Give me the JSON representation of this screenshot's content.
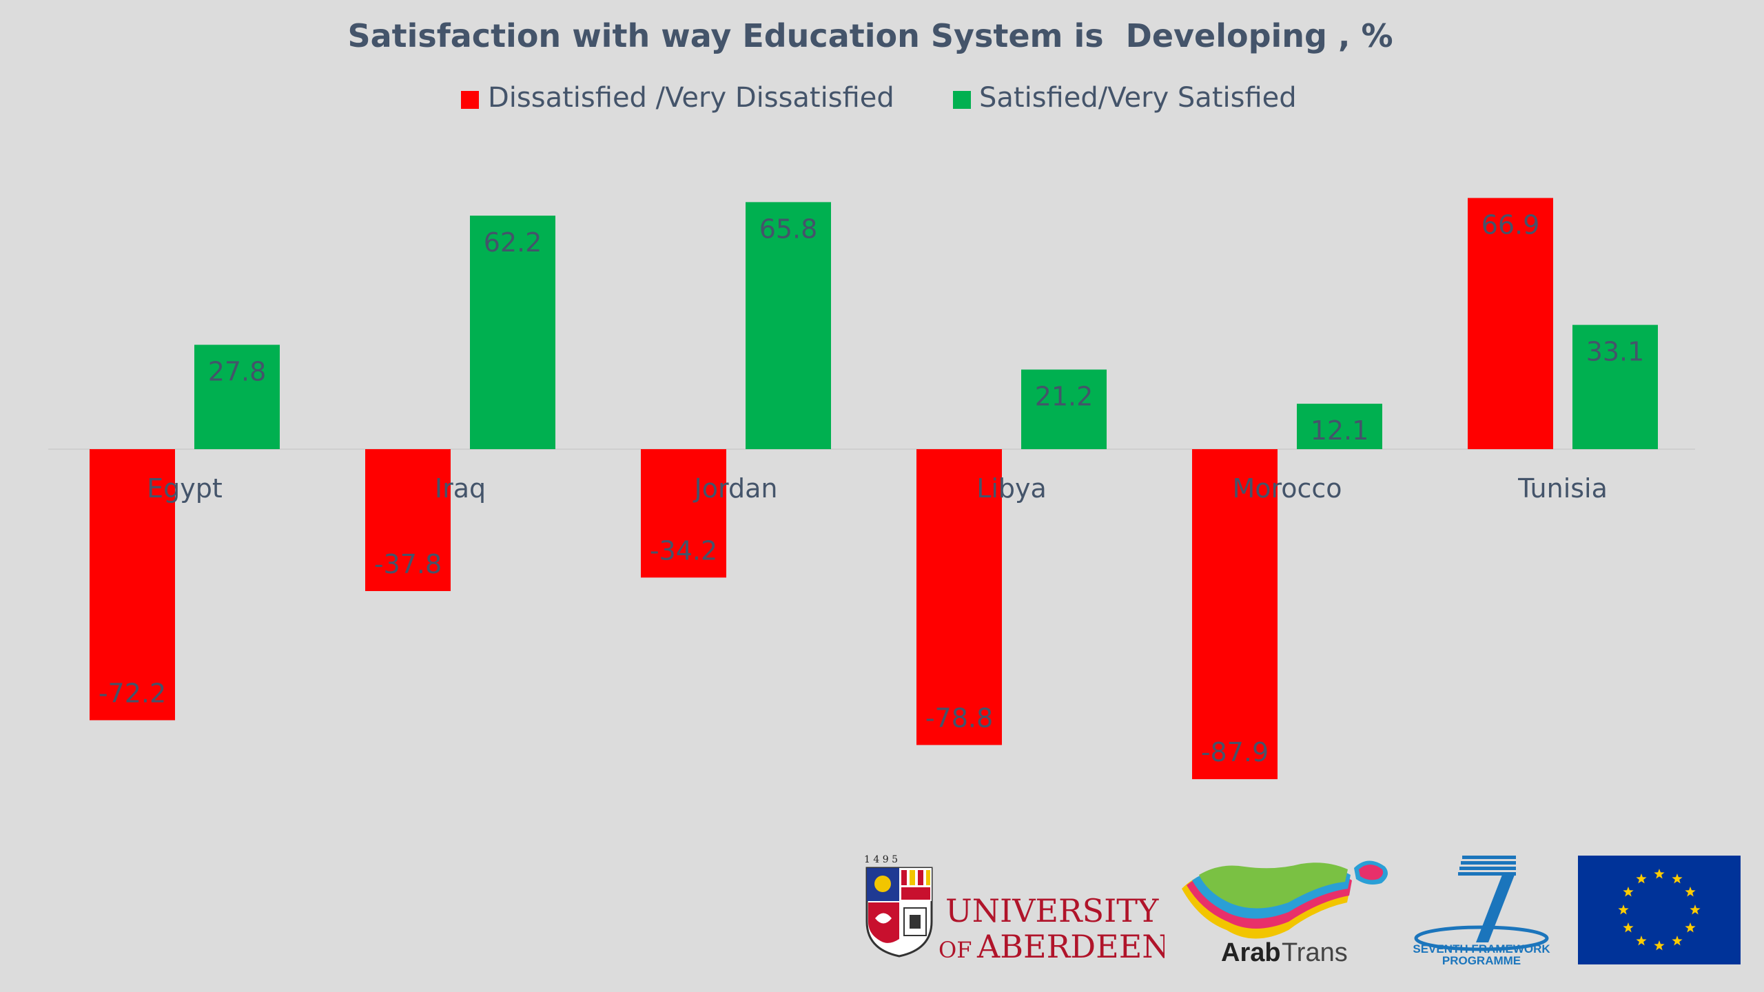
{
  "chart_data": {
    "type": "bar",
    "title": "Satisfaction with way Education System is  Developing , %",
    "categories": [
      "Egypt",
      "Iraq",
      "Jordan",
      "Libya",
      "Morocco",
      "Tunisia"
    ],
    "series": [
      {
        "name": "Dissatisfied /Very Dissatisfied",
        "color": "#ff0000",
        "values": [
          -72.2,
          -37.8,
          -34.2,
          -78.8,
          -87.9,
          66.9
        ],
        "labels": [
          "-72.2",
          "-37.8",
          "-34.2",
          "-78.8",
          "-87.9",
          "66.9"
        ]
      },
      {
        "name": "Satisfied/Very Satisfied",
        "color": "#00b050",
        "values": [
          27.8,
          62.2,
          65.8,
          21.2,
          12.1,
          33.1
        ],
        "labels": [
          "27.8",
          "62.2",
          "65.8",
          "21.2",
          "12.1",
          "33.1"
        ]
      }
    ],
    "legend_position": "top",
    "grid": false,
    "ylim": [
      -90,
      70
    ]
  },
  "logos": {
    "aberdeen": {
      "year": "1 4 9 5",
      "line1": "UNIVERSITY",
      "line2_of": "OF",
      "line2": "ABERDEEN"
    },
    "arabtrans": {
      "bold": "Arab",
      "light": "Trans"
    },
    "fp7": {
      "line1": "SEVENTH FRAMEWORK",
      "line2": "PROGRAMME"
    },
    "eu": {
      "icon": "eu-flag-icon"
    }
  }
}
